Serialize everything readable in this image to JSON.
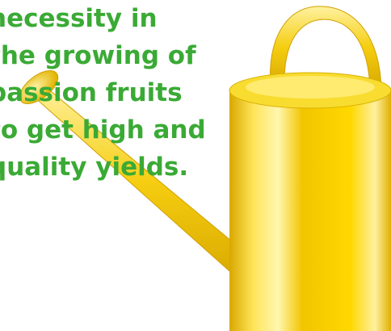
{
  "text_lines": [
    "necessity in",
    "the growing of",
    "passion fruits",
    "to get high and",
    "quality yields."
  ]
}
